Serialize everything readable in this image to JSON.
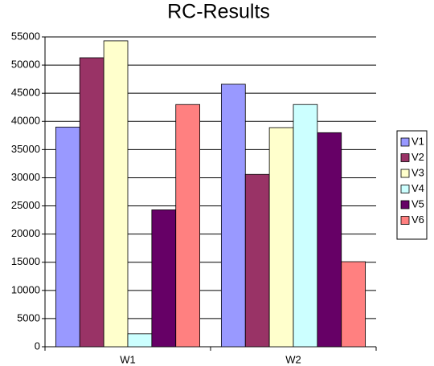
{
  "chart_data": {
    "type": "bar",
    "title": "RC-Results",
    "categories": [
      "W1",
      "W2"
    ],
    "series": [
      {
        "name": "V1",
        "color": "#9999ff",
        "values": [
          39000,
          46600
        ]
      },
      {
        "name": "V2",
        "color": "#993366",
        "values": [
          51300,
          30600
        ]
      },
      {
        "name": "V3",
        "color": "#ffffcc",
        "values": [
          54300,
          38900
        ]
      },
      {
        "name": "V4",
        "color": "#ccffff",
        "values": [
          2300,
          43000
        ]
      },
      {
        "name": "V5",
        "color": "#660066",
        "values": [
          24300,
          38000
        ]
      },
      {
        "name": "V6",
        "color": "#ff8080",
        "values": [
          43000,
          15100
        ]
      }
    ],
    "ylim": [
      0,
      55000
    ],
    "yticks": [
      0,
      5000,
      10000,
      15000,
      20000,
      25000,
      30000,
      35000,
      40000,
      45000,
      50000,
      55000
    ],
    "grid": true,
    "legend": "right"
  }
}
